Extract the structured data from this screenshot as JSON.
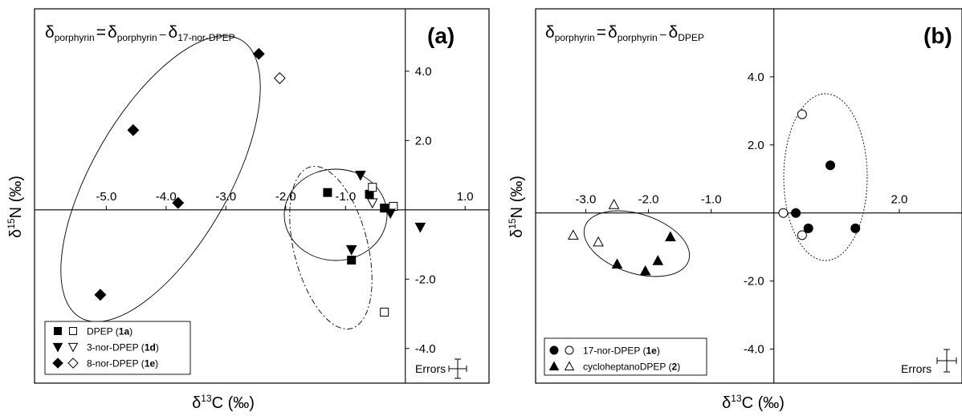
{
  "chart_data": [
    {
      "type": "scatter",
      "panel_label": "(a)",
      "formula": {
        "lhs": "δ",
        "lhs_sub": "porphyrin",
        "rhs1": "δ",
        "rhs1_sub": "porphyrin",
        "minus": "–",
        "rhs2": "δ",
        "rhs2_sub": "17-nor-DPEP"
      },
      "xlabel": {
        "pre": "δ",
        "sup": "13",
        "post": "C (‰)"
      },
      "ylabel": {
        "pre": "δ",
        "sup": "15",
        "post": "N (‰)"
      },
      "xlim": [
        -6.2,
        1.4
      ],
      "ylim": [
        -5.0,
        5.8
      ],
      "x_ticks": [
        -5.0,
        -4.0,
        -3.0,
        -2.0,
        -1.0,
        1.0
      ],
      "x_tick_labels": [
        "-5.0",
        "-4.0",
        "-3.0",
        "-2.0",
        "-1.0",
        "1.0"
      ],
      "y_ticks": [
        4.0,
        2.0,
        -2.0,
        -4.0
      ],
      "y_tick_labels": [
        "4.0",
        "2.0",
        "-2.0",
        "-4.0"
      ],
      "errors_label": "Errors",
      "series": [
        {
          "name": "DPEP",
          "compound": "1a",
          "marker": "square",
          "filled": true,
          "points": [
            [
              -1.3,
              0.5
            ],
            [
              -0.6,
              0.45
            ],
            [
              -0.35,
              0.05
            ],
            [
              -0.9,
              -1.45
            ]
          ]
        },
        {
          "name": "DPEP",
          "compound": "1a",
          "marker": "square",
          "filled": false,
          "points": [
            [
              -0.55,
              0.65
            ],
            [
              -0.2,
              0.1
            ],
            [
              -0.35,
              -2.95
            ]
          ]
        },
        {
          "name": "3-nor-DPEP",
          "compound": "1d",
          "marker": "triangle-down",
          "filled": true,
          "points": [
            [
              -0.75,
              1.0
            ],
            [
              -0.25,
              -0.1
            ],
            [
              0.25,
              -0.5
            ],
            [
              -0.9,
              -1.15
            ]
          ]
        },
        {
          "name": "3-nor-DPEP",
          "compound": "1d",
          "marker": "triangle-down",
          "filled": false,
          "points": [
            [
              -0.55,
              0.2
            ]
          ]
        },
        {
          "name": "8-nor-DPEP",
          "compound": "1e",
          "marker": "diamond",
          "filled": true,
          "points": [
            [
              -2.45,
              4.5
            ],
            [
              -4.55,
              2.3
            ],
            [
              -3.8,
              0.2
            ],
            [
              -5.1,
              -2.45
            ]
          ]
        },
        {
          "name": "8-nor-DPEP",
          "compound": "1e",
          "marker": "diamond",
          "filled": false,
          "points": [
            [
              -2.1,
              3.8
            ]
          ]
        }
      ],
      "legend": {
        "placement": "bottom-left",
        "entries": [
          {
            "marker": "square",
            "name": "DPEP",
            "compound": "1a"
          },
          {
            "marker": "triangle-down",
            "name": "3-nor-DPEP",
            "compound": "1d"
          },
          {
            "marker": "diamond",
            "name": "8-nor-DPEP",
            "compound": "1e"
          }
        ]
      }
    },
    {
      "type": "scatter",
      "panel_label": "(b)",
      "formula": {
        "lhs": "δ",
        "lhs_sub": "porphyrin",
        "rhs1": "δ",
        "rhs1_sub": "porphyrin",
        "minus": "–",
        "rhs2": "δ",
        "rhs2_sub": "DPEP"
      },
      "xlabel": {
        "pre": "δ",
        "sup": "13",
        "post": "C (‰)"
      },
      "ylabel": {
        "pre": "δ",
        "sup": "15",
        "post": "N (‰)"
      },
      "xlim": [
        -3.8,
        3.0
      ],
      "ylim": [
        -5.0,
        6.0
      ],
      "x_ticks": [
        -3.0,
        -2.0,
        -1.0,
        2.0
      ],
      "x_tick_labels": [
        "-3.0",
        "-2.0",
        "-1.0",
        "2.0"
      ],
      "y_ticks": [
        4.0,
        2.0,
        -2.0,
        -4.0
      ],
      "y_tick_labels": [
        "4.0",
        "2.0",
        "-2.0",
        "-4.0"
      ],
      "errors_label": "Errors",
      "series": [
        {
          "name": "17-nor-DPEP",
          "compound": "1e",
          "marker": "circle",
          "filled": true,
          "points": [
            [
              0.35,
              0.0
            ],
            [
              0.9,
              1.4
            ],
            [
              0.55,
              -0.45
            ],
            [
              1.3,
              -0.45
            ]
          ]
        },
        {
          "name": "17-nor-DPEP",
          "compound": "1e",
          "marker": "circle",
          "filled": false,
          "points": [
            [
              0.15,
              0.0
            ],
            [
              0.45,
              2.9
            ],
            [
              0.45,
              -0.65
            ]
          ]
        },
        {
          "name": "cycloheptanoDPEP",
          "compound": "2",
          "marker": "triangle-up",
          "filled": true,
          "points": [
            [
              -2.5,
              -1.5
            ],
            [
              -2.05,
              -1.7
            ],
            [
              -1.85,
              -1.4
            ],
            [
              -1.65,
              -0.7
            ]
          ]
        },
        {
          "name": "cycloheptanoDPEP",
          "compound": "2",
          "marker": "triangle-up",
          "filled": false,
          "points": [
            [
              -2.55,
              0.25
            ],
            [
              -3.2,
              -0.65
            ],
            [
              -2.8,
              -0.85
            ]
          ]
        }
      ],
      "legend": {
        "placement": "bottom-left",
        "entries": [
          {
            "marker": "circle",
            "name": "17-nor-DPEP",
            "compound": "1e"
          },
          {
            "marker": "triangle-up",
            "name": "cycloheptanoDPEP",
            "compound": "2"
          }
        ]
      }
    }
  ]
}
